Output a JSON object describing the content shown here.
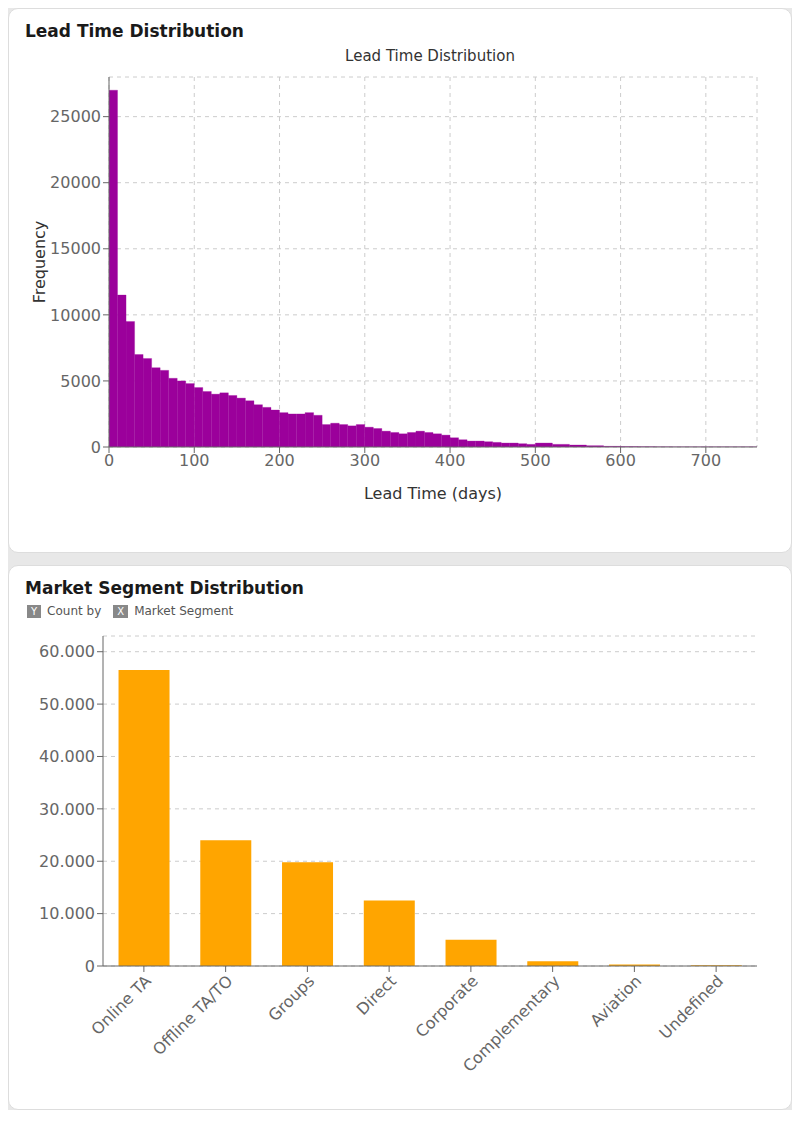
{
  "chart_data": [
    {
      "type": "histogram",
      "title": "Lead Time Distribution",
      "subtitle": "Lead Time Distribution",
      "xlabel": "Lead Time (days)",
      "ylabel": "Frequency",
      "color": "#9B009B",
      "bins": [
        0,
        10,
        20,
        30,
        40,
        50,
        60,
        70,
        80,
        90,
        100,
        110,
        120,
        130,
        140,
        150,
        160,
        170,
        180,
        190,
        200,
        210,
        220,
        230,
        240,
        250,
        260,
        270,
        280,
        290,
        300,
        310,
        320,
        330,
        340,
        350,
        360,
        370,
        380,
        390,
        400,
        410,
        420,
        430,
        440,
        450,
        460,
        470,
        480,
        490,
        500,
        520,
        540,
        560,
        580,
        600,
        620,
        640,
        660,
        680,
        700,
        720,
        740,
        760
      ],
      "values": [
        27000,
        11500,
        9500,
        7000,
        6700,
        6000,
        5800,
        5200,
        5000,
        4800,
        4500,
        4200,
        4000,
        4100,
        3900,
        3700,
        3500,
        3200,
        3000,
        2800,
        2600,
        2500,
        2500,
        2600,
        2400,
        1700,
        1800,
        1700,
        1600,
        1700,
        1500,
        1400,
        1200,
        1100,
        1000,
        1100,
        1200,
        1100,
        1000,
        900,
        700,
        550,
        450,
        450,
        400,
        350,
        300,
        300,
        250,
        200,
        300,
        200,
        150,
        100,
        50,
        30,
        20,
        10,
        5,
        5,
        5,
        5,
        5
      ],
      "xlim": [
        0,
        760
      ],
      "ylim": [
        0,
        28000
      ],
      "xticks": [
        0,
        100,
        200,
        300,
        400,
        500,
        600,
        700
      ],
      "yticks": [
        0,
        5000,
        10000,
        15000,
        20000,
        25000
      ],
      "grid": true
    },
    {
      "type": "bar",
      "title": "Market Segment Distribution",
      "annotations": [
        "Y",
        "Count by",
        "X",
        "Market Segment"
      ],
      "categories": [
        "Online TA",
        "Offline TA/TO",
        "Groups",
        "Direct",
        "Corporate",
        "Complementary",
        "Aviation",
        "Undefined"
      ],
      "values": [
        56500,
        24000,
        19800,
        12500,
        5000,
        900,
        300,
        150
      ],
      "color": "#FFA500",
      "ylim": [
        0,
        63000
      ],
      "yticks": [
        0,
        {
          "value": 10000,
          "label": "10.000"
        },
        {
          "value": 20000,
          "label": "20.000"
        },
        {
          "value": 30000,
          "label": "30.000"
        },
        {
          "value": 40000,
          "label": "40.000"
        },
        {
          "value": 50000,
          "label": "50.000"
        },
        {
          "value": 60000,
          "label": "60.000"
        }
      ],
      "grid": "y"
    }
  ]
}
